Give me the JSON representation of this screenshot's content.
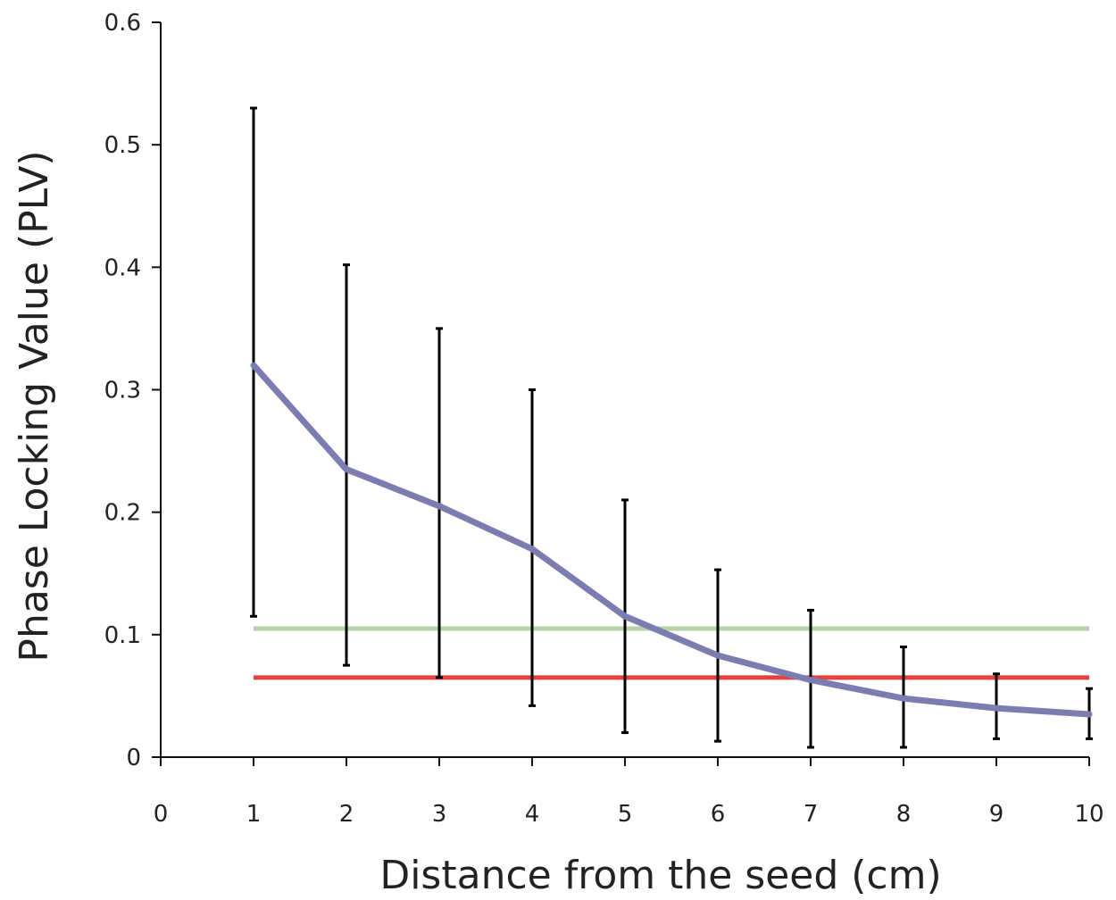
{
  "chart_data": {
    "type": "line",
    "xlabel": "Distance from the seed (cm)",
    "ylabel": "Phase Locking Value (PLV)",
    "xlim": [
      0,
      10
    ],
    "ylim": [
      0,
      0.6
    ],
    "x_ticks": [
      "0",
      "1",
      "2",
      "3",
      "4",
      "5",
      "6",
      "7",
      "8",
      "9",
      "10"
    ],
    "y_ticks": [
      "0",
      "0.1",
      "0.2",
      "0.3",
      "0.4",
      "0.5",
      "0.6"
    ],
    "grid": false,
    "series": [
      {
        "x": [
          1,
          2,
          3,
          4,
          5,
          6,
          7,
          8,
          9,
          10
        ],
        "values": [
          0.32,
          0.235,
          0.205,
          0.17,
          0.115,
          0.083,
          0.063,
          0.048,
          0.04,
          0.035
        ],
        "error_low": [
          0.115,
          0.075,
          0.065,
          0.042,
          0.02,
          0.013,
          0.008,
          0.008,
          0.015,
          0.015
        ],
        "error_high": [
          0.53,
          0.402,
          0.35,
          0.3,
          0.21,
          0.153,
          0.12,
          0.09,
          0.068,
          0.056
        ],
        "color": "#7b7db0"
      }
    ],
    "reference_lines": [
      {
        "y": 0.105,
        "x_range": [
          1,
          10
        ],
        "color": "#b9d1a9"
      },
      {
        "y": 0.065,
        "x_range": [
          1,
          10
        ],
        "color": "#e4413f"
      }
    ]
  }
}
